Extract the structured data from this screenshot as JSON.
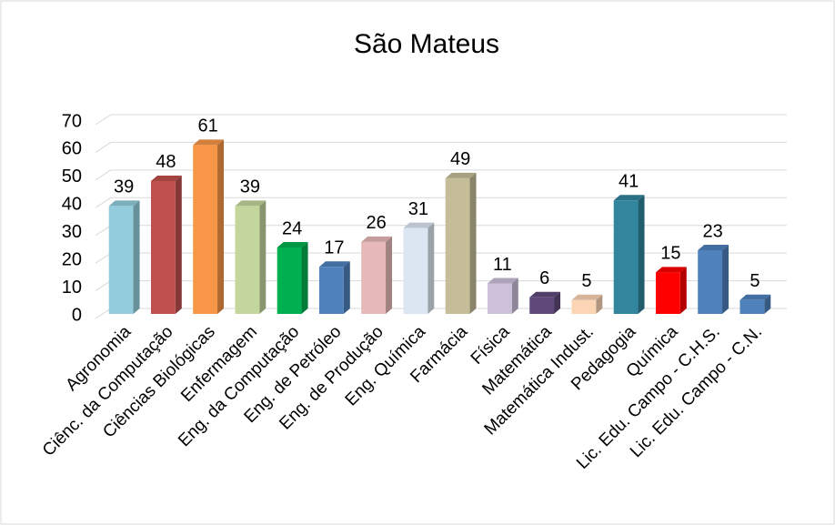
{
  "chart_data": {
    "type": "bar3d",
    "title": "São Mateus",
    "categories": [
      "Agronomia",
      "Ciênc. da Computação",
      "Ciências Biológicas",
      "Enfermagem",
      "Eng. da Computação",
      "Eng. de Petróleo",
      "Eng. de Produção",
      "Eng. Química",
      "Farmácia",
      "Física",
      "Matemática",
      "Matemática Indust.",
      "Pedagogia",
      "Química",
      "Lic. Edu. Campo - C.H.S.",
      "Lic. Edu. Campo - C.N."
    ],
    "values": [
      39,
      48,
      61,
      39,
      24,
      17,
      26,
      31,
      49,
      11,
      6,
      5,
      41,
      15,
      23,
      5
    ],
    "colors": [
      "#93cddd",
      "#c0504d",
      "#f79646",
      "#c3d69b",
      "#00b050",
      "#4f81bd",
      "#e6b9b8",
      "#dce6f2",
      "#c4bd97",
      "#ccc0da",
      "#604a7b",
      "#fcd5b5",
      "#31859c",
      "#ff0000",
      "#4f81bd",
      "#4f81bd"
    ],
    "ylim": [
      0,
      70
    ],
    "yticks": [
      0,
      10,
      20,
      30,
      40,
      50,
      60,
      70
    ],
    "grid": true
  }
}
